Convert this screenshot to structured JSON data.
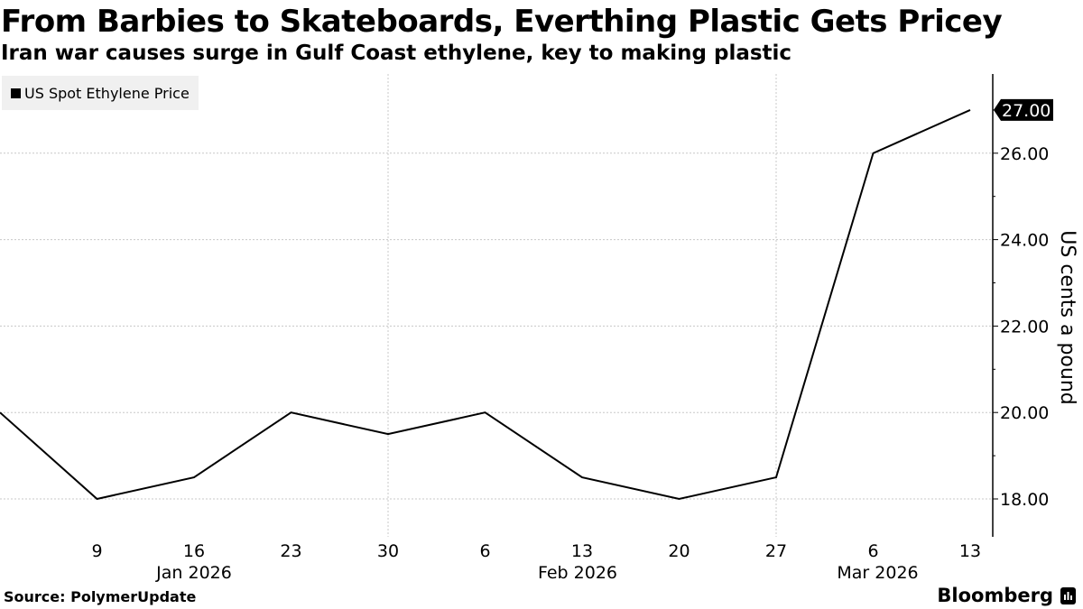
{
  "header": {
    "title": "From Barbies to Skateboards, Everthing Plastic Gets Pricey",
    "subtitle": "Iran war causes surge in Gulf Coast ethylene, key to making plastic"
  },
  "legend": {
    "label": "US Spot Ethylene Price",
    "color": "#000000"
  },
  "footer": {
    "source": "Source:  PolymerUpdate",
    "brand": "Bloomberg"
  },
  "last_value_label": "27.00",
  "chart_data": {
    "type": "line",
    "title": "From Barbies to Skateboards, Everthing Plastic Gets Pricey",
    "subtitle": "Iran war causes surge in Gulf Coast ethylene, key to making plastic",
    "xlabel": "",
    "ylabel": "US cents a pound",
    "x": [
      "2026-01-02",
      "2026-01-09",
      "2026-01-16",
      "2026-01-23",
      "2026-01-30",
      "2026-02-06",
      "2026-02-13",
      "2026-02-20",
      "2026-02-27",
      "2026-03-06",
      "2026-03-13"
    ],
    "series": [
      {
        "name": "US Spot Ethylene Price",
        "values": [
          20.0,
          18.0,
          18.5,
          20.0,
          19.5,
          20.0,
          18.5,
          18.0,
          18.5,
          26.0,
          27.0
        ],
        "color": "#000000"
      }
    ],
    "x_tick_labels": [
      "9",
      "16",
      "23",
      "30",
      "6",
      "13",
      "20",
      "27",
      "6",
      "13"
    ],
    "x_month_labels": [
      "Jan 2026",
      "Feb 2026",
      "Mar 2026"
    ],
    "y_tick_labels": [
      "18.00",
      "20.00",
      "22.00",
      "24.00",
      "26.00"
    ],
    "ylim": [
      17.2,
      28.5
    ],
    "grid": true,
    "legend_position": "top-left",
    "y_axis_position": "right",
    "annotations": [
      "27.00"
    ]
  }
}
